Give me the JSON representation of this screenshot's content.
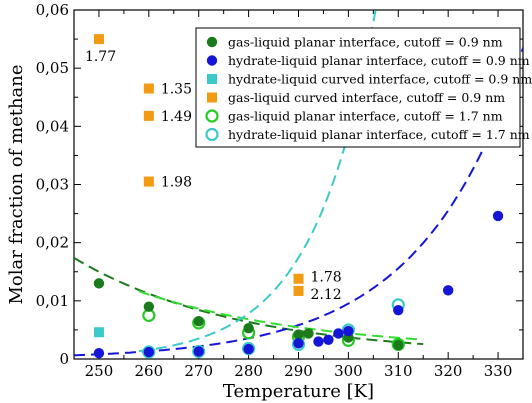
{
  "chart_data": {
    "type": "scatter",
    "xlabel": "Temperature [K]",
    "ylabel": "Molar fraction of methane",
    "xlim": [
      245,
      335
    ],
    "ylim": [
      0,
      0.06
    ],
    "xticks": [
      250,
      260,
      270,
      280,
      290,
      300,
      310,
      320,
      330
    ],
    "yticks": [
      0,
      0.01,
      0.02,
      0.03,
      0.04,
      0.05,
      0.06
    ],
    "ytick_labels": [
      "0",
      "0,01",
      "0,02",
      "0,03",
      "0,04",
      "0,05",
      "0,06"
    ],
    "grid": false,
    "legend_position": "top-right",
    "series": [
      {
        "name": "gas-liquid planar interface, cutoff = 0.9 nm",
        "marker": "filled-circle",
        "color": "#1b7a1b",
        "x": [
          250,
          260,
          270,
          280,
          290,
          292,
          300,
          310
        ],
        "y": [
          0.013,
          0.009,
          0.0065,
          0.0053,
          0.0042,
          0.0044,
          0.0037,
          0.0024
        ],
        "trend_color": "#1b7a1b",
        "trend_x": [
          245,
          315
        ],
        "trend_fit": [
          0.01445,
          -0.03035,
          0.00055
        ]
      },
      {
        "name": "hydrate-liquid planar interface, cutoff = 0.9 nm",
        "marker": "filled-circle",
        "color": "#1515d8",
        "x": [
          250,
          260,
          270,
          280,
          290,
          294,
          296,
          298,
          300,
          310,
          320,
          330
        ],
        "y": [
          0.001,
          0.0012,
          0.0013,
          0.0017,
          0.0027,
          0.003,
          0.0033,
          0.0044,
          0.0048,
          0.0084,
          0.0118,
          0.0246
        ],
        "trend_color": "#1515d8",
        "trend_x": [
          245,
          335
        ],
        "trend_fit": [
          0.00081,
          0.0493,
          0
        ]
      },
      {
        "name": "hydrate-liquid curved interface, cutoff = 0.9 nm",
        "marker": "filled-square",
        "color": "#3cc9c9",
        "x": [
          250
        ],
        "y": [
          0.0046
        ]
      },
      {
        "name": "gas-liquid curved interface, cutoff = 0.9 nm",
        "marker": "filled-square",
        "color": "#f29a11",
        "x": [
          250,
          260,
          260,
          260,
          290,
          290
        ],
        "y": [
          0.055,
          0.0465,
          0.0418,
          0.0305,
          0.0138,
          0.0117
        ],
        "labels": [
          "1.77",
          "1.35",
          "1.49",
          "1.98",
          "1.78",
          "2.12"
        ]
      },
      {
        "name": "gas-liquid planar interface, cutoff = 1.7 nm",
        "marker": "open-circle",
        "color": "#22cc22",
        "x": [
          260,
          270,
          280,
          290,
          300,
          310
        ],
        "y": [
          0.0075,
          0.0062,
          0.0045,
          0.0038,
          0.0032,
          0.0025
        ],
        "trend_color": "#33dd33",
        "trend_x": [
          258,
          315
        ],
        "trend_fit": [
          0.013,
          -0.0285,
          0.0013
        ]
      },
      {
        "name": "hydrate-liquid planar interface, cutoff = 1.7 nm",
        "marker": "open-circle",
        "color": "#3cc9c9",
        "x": [
          260,
          270,
          280,
          290,
          300,
          310
        ],
        "y": [
          0.0012,
          0.0013,
          0.0018,
          0.0025,
          0.005,
          0.0093
        ],
        "trend_color": "#3cc9c9",
        "trend_x": [
          258,
          312
        ],
        "trend_fit": [
          0.00071,
          0.08,
          0
        ]
      }
    ]
  }
}
